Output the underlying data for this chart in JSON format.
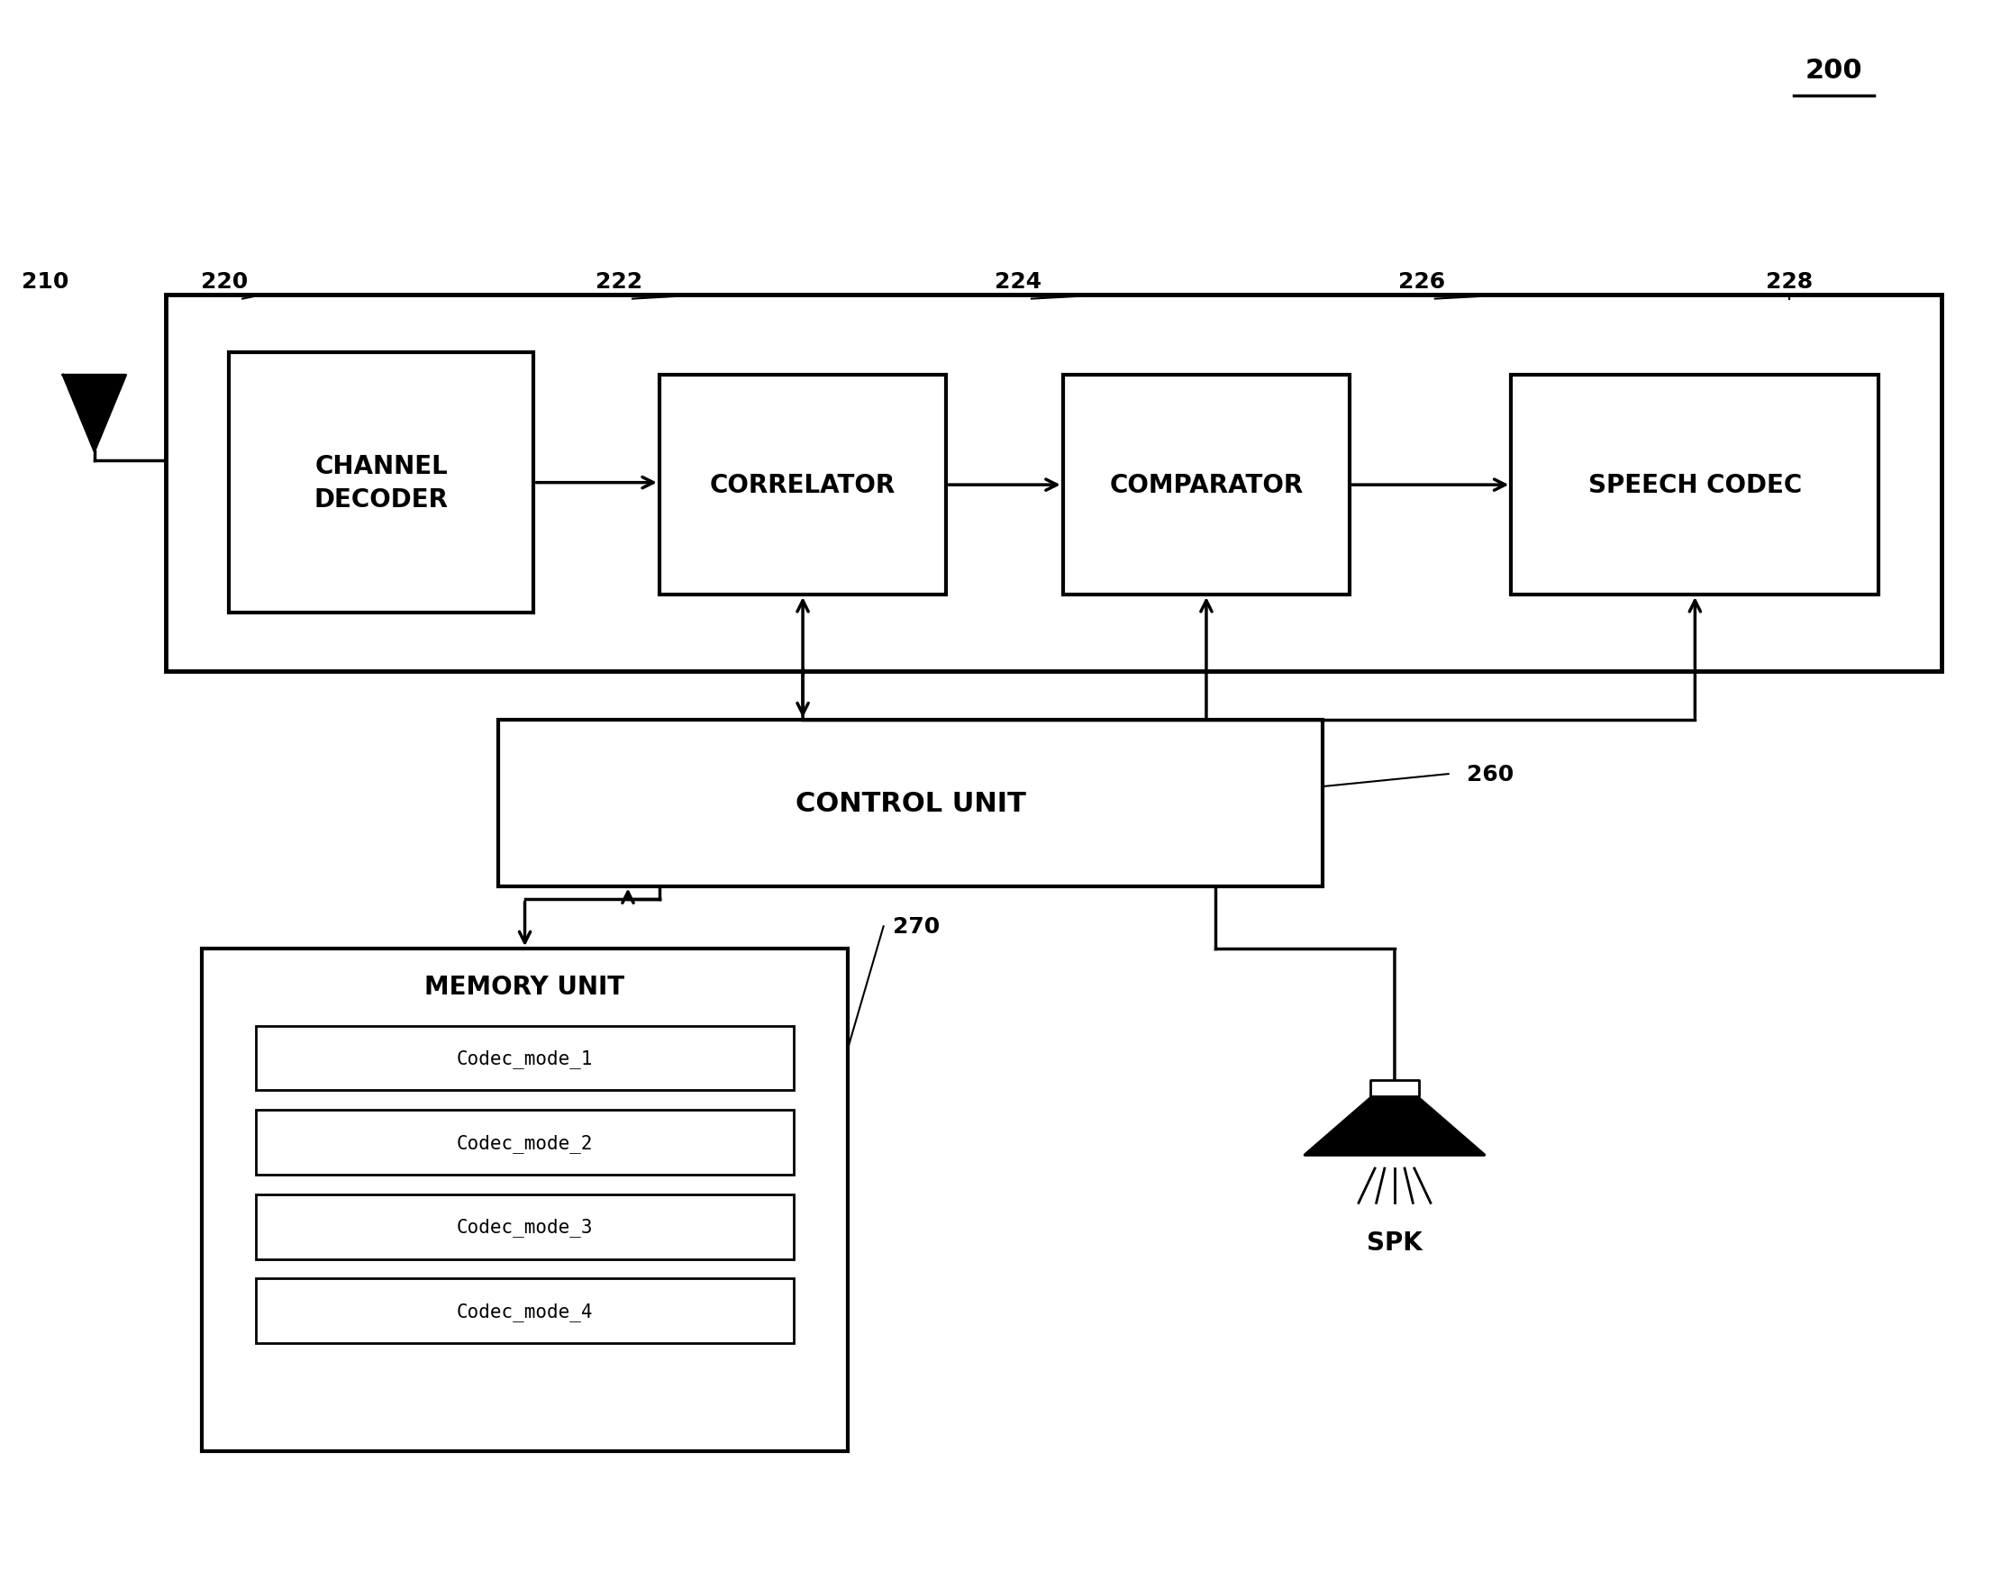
{
  "fig_width": 22.31,
  "fig_height": 17.65,
  "bg_color": "#ffffff",
  "label_200": "200",
  "label_210": "210",
  "label_220": "220",
  "label_222": "222",
  "label_224": "224",
  "label_226": "226",
  "label_228": "228",
  "label_260": "260",
  "label_270": "270",
  "channel_decoder_label": "CHANNEL\nDECODER",
  "correlator_label": "CORRELATOR",
  "comparator_label": "COMPARATOR",
  "speech_codec_label": "SPEECH CODEC",
  "control_unit_label": "CONTROL UNIT",
  "memory_unit_label": "MEMORY UNIT",
  "spk_label": "SPK",
  "codec_modes": [
    "Codec_mode_1",
    "Codec_mode_2",
    "Codec_mode_3",
    "Codec_mode_4"
  ],
  "box_color": "#ffffff",
  "box_edge_color": "#000000",
  "line_color": "#000000",
  "text_color": "#000000",
  "fs_large": 20,
  "fs_medium": 18,
  "fs_small": 16,
  "fs_ref": 18,
  "fs_codec": 15
}
